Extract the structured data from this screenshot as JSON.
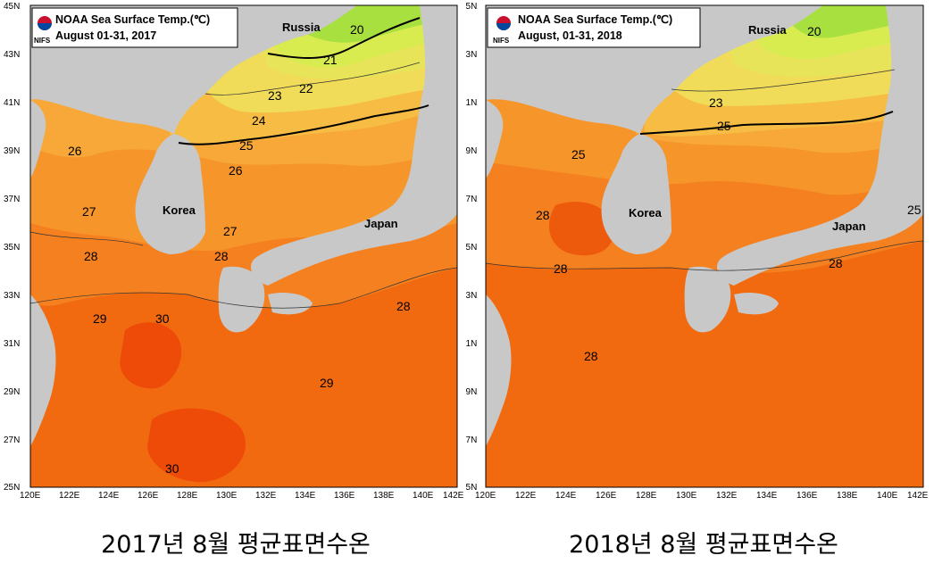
{
  "maps": [
    {
      "id": "left",
      "legend": {
        "line1": "NOAA Sea Surface Temp.(℃)",
        "line2": "August 01-31, 2017",
        "org": "NIFS"
      },
      "caption": "2017년 8월 평균표면수온",
      "regions": {
        "russia": "Russia",
        "korea": "Korea",
        "japan": "Japan"
      },
      "contour_labels": [
        "20",
        "21",
        "22",
        "23",
        "24",
        "25",
        "26",
        "26",
        "27",
        "27",
        "28",
        "28",
        "28",
        "29",
        "29",
        "30",
        "30"
      ]
    },
    {
      "id": "right",
      "legend": {
        "line1": "NOAA Sea Surface Temp.(℃)",
        "line2": "August, 01-31, 2018",
        "org": "NIFS"
      },
      "caption": "2018년 8월 평균표면수온",
      "regions": {
        "russia": "Russia",
        "korea": "Korea",
        "japan": "Japan"
      },
      "contour_labels": [
        "20",
        "23",
        "25",
        "25",
        "25",
        "28",
        "28",
        "28",
        "28"
      ]
    }
  ],
  "axes": {
    "lat_labels": [
      "45N",
      "43N",
      "41N",
      "39N",
      "37N",
      "35N",
      "33N",
      "31N",
      "29N",
      "27N",
      "25N"
    ],
    "lon_labels": [
      "120E",
      "122E",
      "124E",
      "126E",
      "128E",
      "130E",
      "132E",
      "134E",
      "136E",
      "138E",
      "140E",
      "142E"
    ]
  },
  "colors": {
    "land": "#c8c8c8",
    "sst_30": "#ee4a08",
    "sst_29": "#f26a10",
    "sst_28": "#f58020",
    "sst_27": "#f6952a",
    "sst_26": "#f7a838",
    "sst_25": "#f7bc44",
    "sst_24": "#f5d050",
    "sst_23": "#f0dc58",
    "sst_22": "#e8e45a",
    "sst_21": "#d8ec50",
    "sst_20": "#a8e040"
  }
}
